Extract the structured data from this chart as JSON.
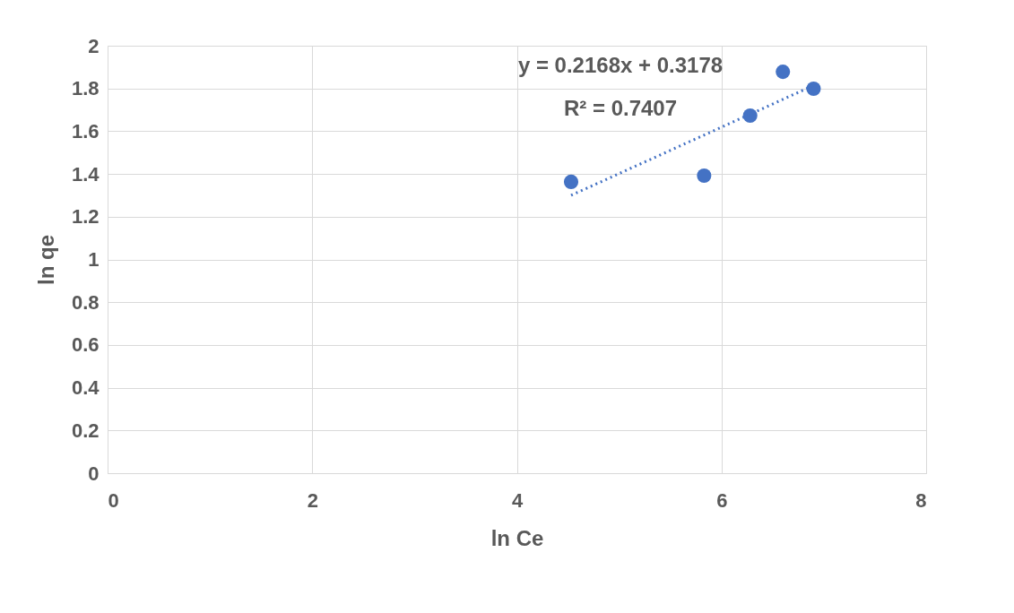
{
  "chart_data": {
    "type": "scatter",
    "xlabel": "ln Ce",
    "ylabel": "ln qe",
    "xlim": [
      0,
      8
    ],
    "xticks": [
      0,
      2,
      4,
      6,
      8
    ],
    "ylim": [
      0,
      2
    ],
    "yticks": [
      0,
      0.2,
      0.4,
      0.6,
      0.8,
      1,
      1.2,
      1.4,
      1.6,
      1.8,
      2
    ],
    "grid": true,
    "annotations": [
      "y = 0.2168x + 0.3178",
      "R² = 0.7407"
    ],
    "series": [
      {
        "marker": "circle",
        "color": "#4472c4",
        "x": [
          4.53,
          5.83,
          6.28,
          6.6,
          6.9
        ],
        "values": [
          1.363,
          1.392,
          1.673,
          1.878,
          1.799
        ]
      },
      {
        "type": "line",
        "marker": "none",
        "color": "#4472c4",
        "line_style": "dotted",
        "x": [
          4.53,
          6.9
        ],
        "values": [
          1.3,
          1.814
        ]
      }
    ]
  }
}
